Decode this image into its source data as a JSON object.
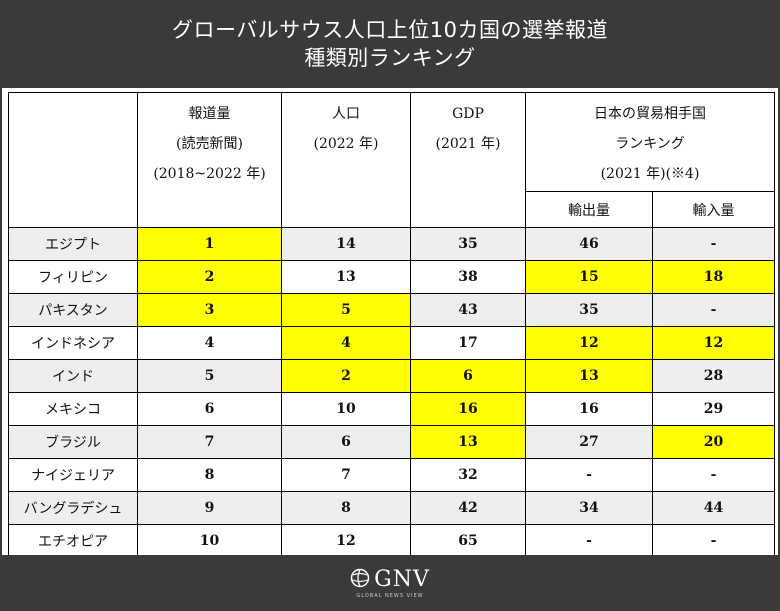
{
  "title": {
    "line1": "グローバルサウス人口上位10カ国の選挙報道",
    "line2": "種類別ランキング"
  },
  "table": {
    "headers": {
      "coverage": [
        "報道量",
        "(読売新聞)",
        "(2018~2022 年)"
      ],
      "population": [
        "人口",
        "(2022 年)"
      ],
      "gdp": [
        "GDP",
        "(2021 年)"
      ],
      "trade": [
        "日本の貿易相手国",
        "ランキング",
        "(2021 年)(※4)"
      ],
      "exports": "輸出量",
      "imports": "輸入量"
    },
    "rows": [
      {
        "country": "エジプト",
        "coverage": "1",
        "population": "14",
        "gdp": "35",
        "exports": "46",
        "imports": "-"
      },
      {
        "country": "フィリピン",
        "coverage": "2",
        "population": "13",
        "gdp": "38",
        "exports": "15",
        "imports": "18"
      },
      {
        "country": "パキスタン",
        "coverage": "3",
        "population": "5",
        "gdp": "43",
        "exports": "35",
        "imports": "-"
      },
      {
        "country": "インドネシア",
        "coverage": "4",
        "population": "4",
        "gdp": "17",
        "exports": "12",
        "imports": "12"
      },
      {
        "country": "インド",
        "coverage": "5",
        "population": "2",
        "gdp": "6",
        "exports": "13",
        "imports": "28"
      },
      {
        "country": "メキシコ",
        "coverage": "6",
        "population": "10",
        "gdp": "16",
        "exports": "16",
        "imports": "29"
      },
      {
        "country": "ブラジル",
        "coverage": "7",
        "population": "6",
        "gdp": "13",
        "exports": "27",
        "imports": "20"
      },
      {
        "country": "ナイジェリア",
        "coverage": "8",
        "population": "7",
        "gdp": "32",
        "exports": "-",
        "imports": "-"
      },
      {
        "country": "バングラデシュ",
        "coverage": "9",
        "population": "8",
        "gdp": "42",
        "exports": "34",
        "imports": "44"
      },
      {
        "country": "エチオピア",
        "coverage": "10",
        "population": "12",
        "gdp": "65",
        "exports": "-",
        "imports": "-"
      }
    ]
  },
  "highlight_color": "#ffff00",
  "logo": {
    "text": "GNV",
    "subtext": "GLOBAL NEWS VIEW",
    "icon": "globe-icon"
  }
}
